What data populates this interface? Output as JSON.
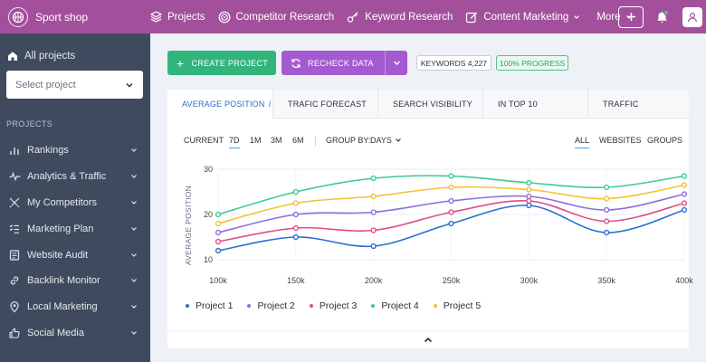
{
  "app": {
    "name": "Sport shop"
  },
  "nav": {
    "items": [
      {
        "label": "Projects",
        "icon": "layers-icon"
      },
      {
        "label": "Competitor Research",
        "icon": "target-icon"
      },
      {
        "label": "Keyword Research",
        "icon": "key-icon"
      },
      {
        "label": "Content Marketing",
        "icon": "edit-icon"
      }
    ],
    "more_label": "More"
  },
  "sidebar": {
    "all_projects_label": "All projects",
    "select_placeholder": "Select project",
    "heading": "PROJECTS",
    "items": [
      {
        "label": "Rankings",
        "icon": "bar-chart-icon"
      },
      {
        "label": "Analytics & Traffic",
        "icon": "pulse-icon"
      },
      {
        "label": "My Competitors",
        "icon": "swords-icon"
      },
      {
        "label": "Marketing Plan",
        "icon": "checklist-icon"
      },
      {
        "label": "Website Audit",
        "icon": "audit-icon"
      },
      {
        "label": "Backlink Monitor",
        "icon": "link-icon"
      },
      {
        "label": "Local Marketing",
        "icon": "map-pin-icon"
      },
      {
        "label": "Social Media",
        "icon": "thumbs-up-icon"
      }
    ]
  },
  "toolbar": {
    "create_label": "CREATE PROJECT",
    "recheck_label": "RECHECK DATA",
    "keywords_label": "KEYWORDS 4,227",
    "progress_label": "100% PROGRESS"
  },
  "tabs": [
    {
      "label": "AVERAGE POSITION",
      "active": true,
      "info": "i"
    },
    {
      "label": "TRAFIC FORECAST",
      "active": false
    },
    {
      "label": "SEARCH VISIBILITY",
      "active": false
    },
    {
      "label": "IN TOP 10",
      "active": false
    },
    {
      "label": "TRAFFIC",
      "active": false
    }
  ],
  "controls": {
    "current_label": "CURRENT",
    "periods": [
      "7D",
      "1M",
      "3M",
      "6M"
    ],
    "active_period": "7D",
    "group_by_label": "GROUP BY:",
    "group_by_value": "DAYS",
    "filters": [
      "ALL",
      "WEBSITES",
      "GROUPS"
    ],
    "active_filter": "ALL"
  },
  "colors": {
    "topbar": "#a3509c",
    "sidebar": "#3f4a5e",
    "create_button": "#31b57c",
    "recheck_button": "#a45ad0",
    "active_tab": "#2f6cc6"
  },
  "chart_data": {
    "type": "line",
    "title": "",
    "xlabel": "",
    "ylabel": "AVERAGE POSITION",
    "x": [
      "100k",
      "150k",
      "200k",
      "250k",
      "300k",
      "350k",
      "400k"
    ],
    "ylim": [
      10,
      30
    ],
    "yticks": [
      10,
      20,
      30
    ],
    "grid": true,
    "legend_position": "bottom-left",
    "series": [
      {
        "name": "Project 1",
        "color": "#2a6ed3",
        "values": [
          12,
          15,
          13,
          18,
          22,
          16,
          21
        ]
      },
      {
        "name": "Project 2",
        "color": "#8b6fe0",
        "values": [
          16,
          20,
          20.5,
          23,
          24,
          21,
          24.5
        ]
      },
      {
        "name": "Project 3",
        "color": "#e04d86",
        "values": [
          14,
          17,
          16.5,
          20.5,
          23,
          18.5,
          22.5
        ]
      },
      {
        "name": "Project 4",
        "color": "#3ccb94",
        "values": [
          20,
          25,
          28,
          28.5,
          27,
          26,
          28.5
        ]
      },
      {
        "name": "Project 5",
        "color": "#f2c233",
        "values": [
          18,
          22.5,
          24,
          26,
          25.5,
          23.5,
          26.5
        ]
      }
    ]
  }
}
